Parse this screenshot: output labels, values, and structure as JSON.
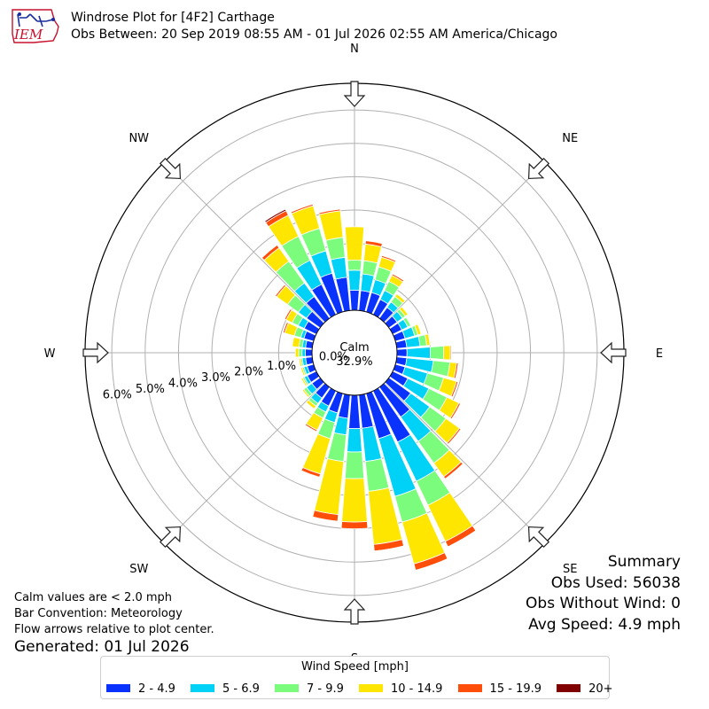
{
  "header": {
    "logo_text": "IEM",
    "title": "Windrose Plot for [4F2] Carthage",
    "subtitle": "Obs Between: 20 Sep 2019 08:55 AM - 01 Jul 2026 02:55 AM America/Chicago"
  },
  "notes": {
    "calm": "Calm values are < 2.0 mph",
    "convention": "Bar Convention: Meteorology",
    "flow": "Flow arrows relative to plot center.",
    "generated": "Generated: 01 Jul 2026"
  },
  "summary": {
    "title": "Summary",
    "obs_used": "Obs Used: 56038",
    "obs_without_wind": "Obs Without Wind: 0",
    "avg_speed": "Avg Speed: 4.9 mph"
  },
  "legend": {
    "title": "Wind Speed [mph]",
    "items": [
      {
        "label": "2 - 4.9",
        "color": "#0a32ff"
      },
      {
        "label": "5 - 6.9",
        "color": "#00d2f7"
      },
      {
        "label": "7 - 9.9",
        "color": "#7cfc7c"
      },
      {
        "label": "10 - 14.9",
        "color": "#ffe600"
      },
      {
        "label": "15 - 19.9",
        "color": "#ff4d0a"
      },
      {
        "label": "20+",
        "color": "#800000"
      }
    ]
  },
  "chart_data": {
    "type": "windrose",
    "title": "Windrose Plot for [4F2] Carthage",
    "subtitle": "Obs Between: 20 Sep 2019 08:55 AM - 01 Jul 2026 02:55 AM America/Chicago",
    "calm_label": "Calm",
    "calm_percent": "32.9%",
    "compass_labels": [
      "N",
      "NE",
      "E",
      "SE",
      "S",
      "SW",
      "W",
      "NW"
    ],
    "compass_angles_deg": [
      0,
      45,
      90,
      135,
      180,
      225,
      270,
      315
    ],
    "radial_ticks": [
      0,
      1,
      2,
      3,
      4,
      5,
      6
    ],
    "radial_tick_labels": [
      "0.0%",
      "1.0%",
      "2.0%",
      "3.0%",
      "4.0%",
      "5.0%",
      "6.0%"
    ],
    "radial_max": 6.8,
    "speed_bins": [
      "2 - 4.9",
      "5 - 6.9",
      "7 - 9.9",
      "10 - 14.9",
      "15 - 19.9",
      "20+"
    ],
    "bin_colors": [
      "#0a32ff",
      "#00d2f7",
      "#7cfc7c",
      "#ffe600",
      "#ff4d0a",
      "#800000"
    ],
    "directions_deg": [
      0,
      10,
      20,
      30,
      40,
      50,
      60,
      70,
      80,
      90,
      100,
      110,
      120,
      130,
      140,
      150,
      160,
      170,
      180,
      190,
      200,
      210,
      220,
      230,
      240,
      250,
      260,
      270,
      280,
      290,
      300,
      310,
      320,
      330,
      340,
      350
    ],
    "cumulative_percent": [
      [
        0.6,
        1.2,
        1.5,
        2.5,
        2.5,
        2.5
      ],
      [
        0.6,
        1.1,
        1.5,
        2.0,
        2.1,
        2.1
      ],
      [
        0.6,
        1.0,
        1.4,
        1.7,
        1.75,
        1.75
      ],
      [
        0.5,
        0.8,
        1.1,
        1.3,
        1.35,
        1.35
      ],
      [
        0.4,
        0.6,
        0.8,
        0.9,
        0.92,
        0.92
      ],
      [
        0.3,
        0.5,
        0.6,
        0.7,
        0.72,
        0.72
      ],
      [
        0.3,
        0.5,
        0.6,
        0.6,
        0.6,
        0.6
      ],
      [
        0.3,
        0.6,
        0.7,
        0.8,
        0.8,
        0.8
      ],
      [
        0.3,
        0.7,
        0.9,
        1.0,
        1.0,
        1.0
      ],
      [
        0.3,
        1.0,
        1.4,
        1.6,
        1.63,
        1.63
      ],
      [
        0.3,
        1.1,
        1.6,
        1.8,
        1.85,
        1.85
      ],
      [
        0.3,
        1.0,
        1.5,
        1.9,
        1.95,
        1.95
      ],
      [
        0.5,
        1.2,
        1.8,
        2.2,
        2.25,
        2.25
      ],
      [
        0.8,
        1.5,
        2.1,
        2.6,
        2.65,
        2.65
      ],
      [
        1.1,
        2.0,
        2.8,
        3.3,
        3.38,
        3.4
      ],
      [
        1.7,
        3.0,
        3.8,
        5.0,
        5.18,
        5.2
      ],
      [
        1.4,
        3.2,
        4.0,
        5.3,
        5.5,
        5.52
      ],
      [
        1.0,
        2.0,
        2.9,
        4.5,
        4.7,
        4.72
      ],
      [
        1.0,
        1.7,
        2.5,
        3.8,
        4.0,
        4.0
      ],
      [
        0.7,
        1.2,
        2.0,
        3.6,
        3.8,
        3.8
      ],
      [
        0.6,
        0.9,
        1.4,
        2.5,
        2.6,
        2.6
      ],
      [
        0.5,
        0.7,
        0.9,
        1.3,
        1.35,
        1.35
      ],
      [
        0.4,
        0.6,
        0.7,
        0.8,
        0.82,
        0.82
      ],
      [
        0.3,
        0.5,
        0.6,
        0.65,
        0.65,
        0.65
      ],
      [
        0.3,
        0.4,
        0.45,
        0.5,
        0.5,
        0.5
      ],
      [
        0.2,
        0.3,
        0.35,
        0.4,
        0.4,
        0.4
      ],
      [
        0.2,
        0.3,
        0.35,
        0.4,
        0.4,
        0.4
      ],
      [
        0.2,
        0.3,
        0.4,
        0.5,
        0.5,
        0.5
      ],
      [
        0.2,
        0.3,
        0.4,
        0.6,
        0.6,
        0.6
      ],
      [
        0.3,
        0.4,
        0.6,
        0.9,
        0.95,
        0.95
      ],
      [
        0.4,
        0.6,
        0.8,
        1.0,
        1.05,
        1.05
      ],
      [
        0.5,
        0.8,
        1.2,
        1.6,
        1.65,
        1.65
      ],
      [
        0.8,
        1.3,
        2.1,
        2.6,
        2.7,
        2.7
      ],
      [
        1.0,
        1.8,
        2.6,
        3.3,
        3.45,
        3.5
      ],
      [
        1.2,
        1.9,
        2.6,
        3.3,
        3.35,
        3.35
      ],
      [
        1.0,
        1.6,
        2.2,
        3.0,
        3.05,
        3.05
      ]
    ]
  }
}
